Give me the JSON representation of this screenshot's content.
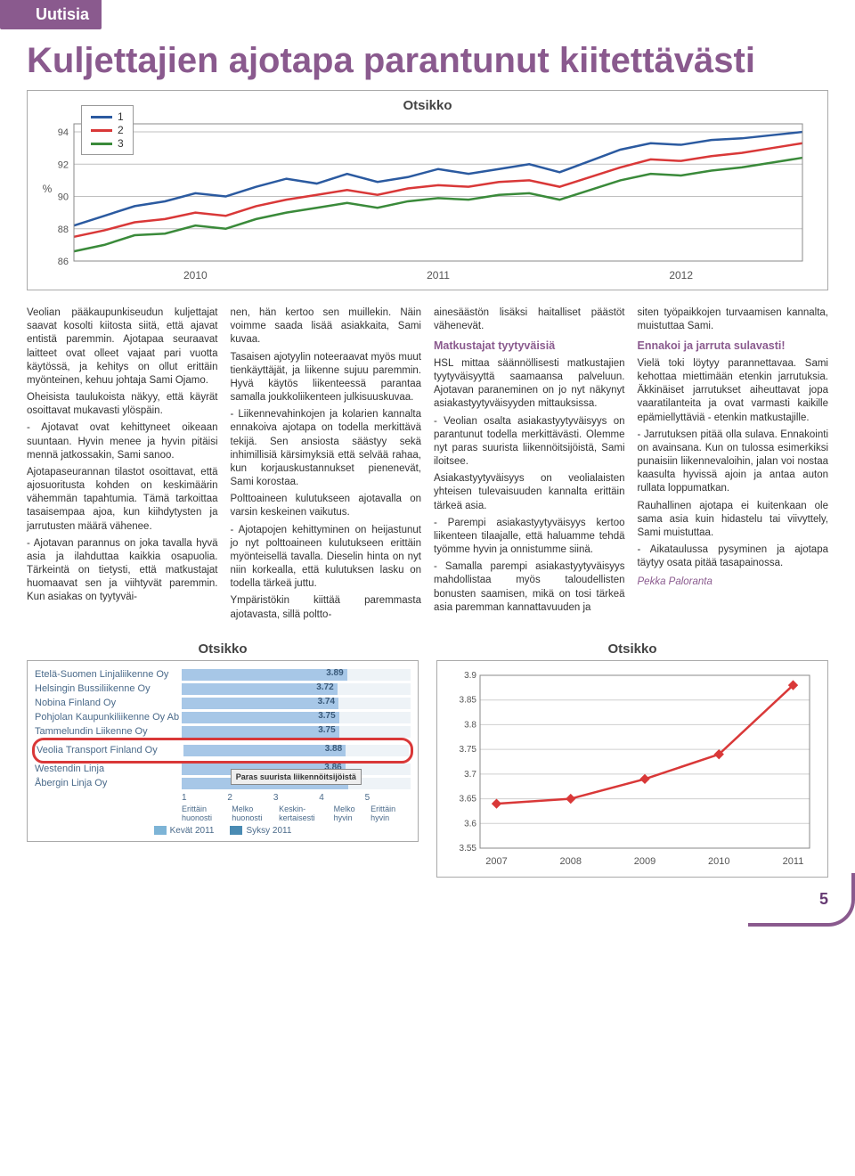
{
  "banner": "Uutisia",
  "headline": "Kuljettajien ajotapa parantunut kiitettävästi",
  "top_chart": {
    "type": "line",
    "title": "Otsikko",
    "legend": [
      "1",
      "2",
      "3"
    ],
    "line_colors": [
      "#2b5aa0",
      "#d93838",
      "#3a8a3a"
    ],
    "y_label": "%",
    "y_ticks": [
      86,
      88,
      90,
      92,
      94
    ],
    "ylim": [
      86,
      94.5
    ],
    "x_ticks": [
      "2010",
      "2011",
      "2012"
    ],
    "grid_color": "#bfbfbf",
    "background_color": "#ffffff",
    "series": [
      [
        88.2,
        88.8,
        89.4,
        89.7,
        90.2,
        90.0,
        90.6,
        91.1,
        90.8,
        91.4,
        90.9,
        91.2,
        91.7,
        91.4,
        91.7,
        92.0,
        91.5,
        92.2,
        92.9,
        93.3,
        93.2,
        93.5,
        93.6,
        93.8,
        94.0
      ],
      [
        87.5,
        87.9,
        88.4,
        88.6,
        89.0,
        88.8,
        89.4,
        89.8,
        90.1,
        90.4,
        90.1,
        90.5,
        90.7,
        90.6,
        90.9,
        91.0,
        90.6,
        91.2,
        91.8,
        92.3,
        92.2,
        92.5,
        92.7,
        93.0,
        93.3
      ],
      [
        86.6,
        87.0,
        87.6,
        87.7,
        88.2,
        88.0,
        88.6,
        89.0,
        89.3,
        89.6,
        89.3,
        89.7,
        89.9,
        89.8,
        90.1,
        90.2,
        89.8,
        90.4,
        91.0,
        91.4,
        91.3,
        91.6,
        91.8,
        92.1,
        92.4
      ]
    ]
  },
  "body": {
    "col1": [
      "Veolian pääkaupunkiseudun kuljettajat saavat kosolti kiitosta siitä, että ajavat entistä paremmin. Ajotapaa seuraavat laitteet ovat olleet vajaat pari vuotta käytössä, ja kehitys on ollut erittäin myönteinen, kehuu johtaja Sami Ojamo.",
      "Oheisista taulukoista näkyy, että käyrät osoittavat mukavasti ylöspäin.",
      "- Ajotavat ovat kehittyneet oikeaan suuntaan. Hyvin menee ja hyvin pitäisi mennä jatkossakin, Sami sanoo.",
      "Ajotapaseurannan tilastot osoittavat, että ajosuoritusta kohden on keskimäärin vähemmän tapahtumia. Tämä tarkoittaa tasaisempaa ajoa, kun kiihdytysten ja jarrutusten määrä vähenee.",
      "- Ajotavan parannus on joka tavalla hyvä asia ja ilahduttaa kaikkia osapuolia. Tärkeintä on tietysti, että matkustajat huomaavat sen ja viihtyvät paremmin. Kun asiakas on tyytyväi-"
    ],
    "col2": [
      "nen, hän kertoo sen muillekin. Näin voimme saada lisää asiakkaita, Sami kuvaa.",
      "Tasaisen ajotyylin noteeraavat myös muut tienkäyttäjät, ja liikenne sujuu paremmin. Hyvä käytös liikenteessä parantaa samalla joukkoliikenteen julkisuuskuvaa.",
      "- Liikennevahinkojen ja kolarien kannalta ennakoiva ajotapa on todella merkittävä tekijä. Sen ansiosta säästyy sekä inhimillisiä kärsimyksiä että selvää rahaa, kun korjauskustannukset pienenevät, Sami korostaa.",
      "Polttoaineen kulutukseen ajotavalla on varsin keskeinen vaikutus.",
      "- Ajotapojen kehittyminen on heijastunut jo nyt polttoaineen kulutukseen erittäin myönteisellä tavalla. Dieselin hinta on nyt niin korkealla, että kulutuksen lasku on todella tärkeä juttu.",
      "Ympäristökin kiittää paremmasta ajotavasta, sillä poltto-"
    ],
    "col3_intro": "ainesäästön lisäksi haitalliset päästöt vähenevät.",
    "sub1": "Matkustajat tyytyväisiä",
    "col3": [
      "HSL mittaa säännöllisesti matkustajien tyytyväisyyttä saamaansa palveluun. Ajotavan paraneminen on jo nyt näkynyt asiakastyytyväisyyden mittauksissa.",
      "- Veolian osalta asiakastyytyväisyys on parantunut todella merkittävästi. Olemme nyt paras suurista liikennöitsijöistä, Sami iloitsee.",
      "Asiakastyytyväisyys on veolialaisten yhteisen tulevaisuuden kannalta erittäin tärkeä asia.",
      "- Parempi asiakastyytyväisyys kertoo liikenteen tilaajalle, että haluamme tehdä työmme hyvin ja onnistumme siinä.",
      "- Samalla parempi asiakastyytyväisyys mahdollistaa myös taloudellisten bonusten saamisen, mikä on tosi tärkeä asia paremman kannattavuuden ja"
    ],
    "col4_intro": "siten työpaikkojen turvaamisen kannalta, muistuttaa Sami.",
    "sub2": "Ennakoi ja jarruta sulavasti!",
    "col4": [
      "Vielä toki löytyy parannettavaa. Sami kehottaa miettimään etenkin jarrutuksia. Äkkinäiset jarrutukset aiheuttavat jopa vaaratilanteita ja ovat varmasti kaikille epämiellyttäviä - etenkin matkustajille.",
      "- Jarrutuksen pitää olla sulava. Ennakointi on avainsana. Kun on tulossa esimerkiksi punaisiin liikennevaloihin, jalan voi nostaa kaasulta hyvissä ajoin ja antaa auton rullata loppumatkan.",
      "Rauhallinen ajotapa ei kuitenkaan ole sama asia kuin hidastelu tai viivyttely, Sami muistuttaa.",
      "- Aikataulussa pysyminen ja ajotapa täytyy osata pitää tasapainossa."
    ],
    "author": "Pekka Paloranta"
  },
  "bar_chart": {
    "type": "bar",
    "title": "Otsikko",
    "rows": [
      {
        "label": "Etelä-Suomen Linjaliikenne Oy",
        "value": 3.89
      },
      {
        "label": "Helsingin Bussiliikenne Oy",
        "value": 3.72
      },
      {
        "label": "Nobina Finland Oy",
        "value": 3.74
      },
      {
        "label": "Pohjolan Kaupunkiliikenne Oy Ab",
        "value": 3.75
      },
      {
        "label": "Tammelundin Liikenne Oy",
        "value": 3.75
      },
      {
        "label": "Veolia Transport Finland Oy",
        "value": 3.88,
        "highlight": true
      },
      {
        "label": "Westendin Linja",
        "value": 3.86
      },
      {
        "label": "Åbergin Linja Oy",
        "value": 3.91
      }
    ],
    "xlim": [
      1,
      5
    ],
    "x_ticks": [
      1,
      2,
      3,
      4,
      5
    ],
    "x_tick_labels": [
      "Erittäin huonosti",
      "Melko huonosti",
      "Keskin-kertaisesti",
      "Melko hyvin",
      "Erittäin hyvin"
    ],
    "legend": [
      {
        "label": "Kevät 2011",
        "color": "#7db4d6"
      },
      {
        "label": "Syksy 2011",
        "color": "#4a8bb3"
      }
    ],
    "bar_color": "#a7c7e7",
    "callout": "Paras suurista liikennöitsijöistä"
  },
  "line_chart": {
    "type": "line",
    "title": "Otsikko",
    "x_ticks": [
      "2007",
      "2008",
      "2009",
      "2010",
      "2011"
    ],
    "y_ticks": [
      3.55,
      3.6,
      3.65,
      3.7,
      3.75,
      3.8,
      3.85,
      3.9
    ],
    "ylim": [
      3.55,
      3.9
    ],
    "values": [
      3.64,
      3.65,
      3.69,
      3.74,
      3.88
    ],
    "line_color": "#d93838",
    "marker": "diamond",
    "grid_color": "#cfcfcf"
  },
  "page_number": "5"
}
